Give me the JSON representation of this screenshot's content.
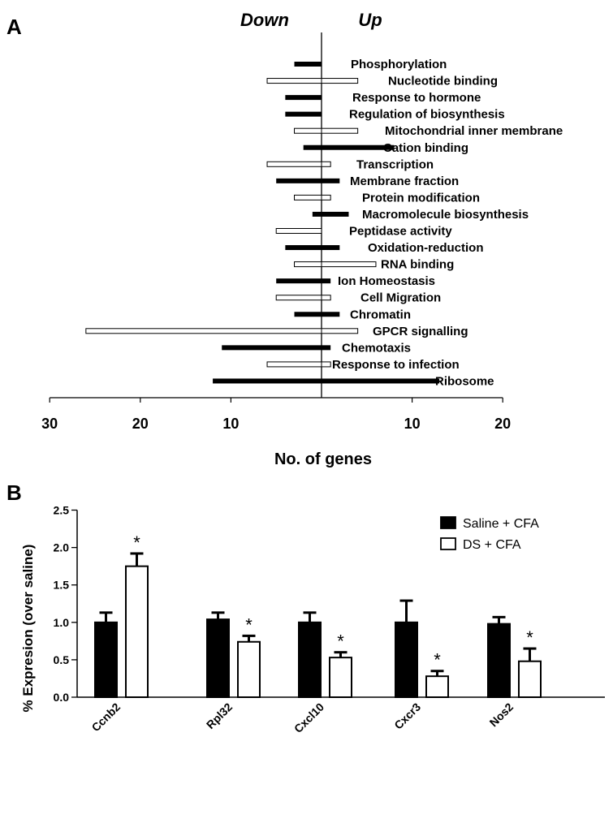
{
  "chart_data": [
    {
      "type": "bar",
      "orientation": "horizontal-diverging",
      "panel_label": "A",
      "direction_labels": {
        "down": "Down",
        "up": "Up"
      },
      "xlabel": "No. of genes",
      "down_axis": {
        "ticks": [
          30,
          20,
          10
        ],
        "range": [
          0,
          30
        ]
      },
      "up_axis": {
        "ticks": [
          10,
          20
        ],
        "range": [
          0,
          20
        ]
      },
      "legend": "none",
      "categories": [
        "Phosphorylation",
        "Nucleotide binding",
        "Response to hormone",
        "Regulation of biosynthesis",
        "Mitochondrial inner membrane",
        "Cation binding",
        "Transcription",
        "Membrane fraction",
        "Protein modification",
        "Macromolecule biosynthesis",
        "Peptidase activity",
        "Oxidation-reduction",
        "RNA binding",
        "Ion Homeostasis",
        "Cell Migration",
        "Chromatin",
        "GPCR signalling",
        "Chemotaxis",
        "Response to infection",
        "Ribosome"
      ],
      "series": [
        {
          "style": "filled",
          "colors": {
            "fill": "#000000"
          },
          "down": [
            3,
            0,
            4,
            4,
            0,
            2,
            0,
            5,
            0,
            1,
            0,
            4,
            0,
            5,
            0,
            3,
            0,
            11,
            0,
            12
          ],
          "up": [
            0,
            0,
            0,
            0,
            0,
            8,
            0,
            2,
            0,
            3,
            0,
            2,
            0,
            1,
            0,
            2,
            0,
            1,
            0,
            13
          ]
        },
        {
          "style": "open",
          "colors": {
            "fill": "#ffffff",
            "stroke": "#000000"
          },
          "down": [
            0,
            6,
            0,
            0,
            3,
            0,
            6,
            0,
            3,
            0,
            5,
            0,
            3,
            0,
            5,
            0,
            26,
            0,
            6,
            0
          ],
          "up": [
            0,
            4,
            0,
            0,
            4,
            0,
            1,
            0,
            1,
            0,
            0,
            0,
            6,
            0,
            1,
            0,
            4,
            0,
            1,
            0
          ]
        }
      ]
    },
    {
      "type": "bar",
      "panel_label": "B",
      "ylabel": "% Expresion  (over saline)",
      "ylim": [
        0,
        2.5
      ],
      "yticks": [
        "0.0",
        "0.5",
        "1.0",
        "1.5",
        "2.0",
        "2.5"
      ],
      "categories": [
        "Ccnb2",
        "Rpl32",
        "Cxcl10",
        "Cxcr3",
        "Nos2"
      ],
      "legend_position": "top-right",
      "series": [
        {
          "name": "Saline + CFA",
          "color": "#000000",
          "values": [
            1.0,
            1.04,
            1.0,
            1.0,
            0.98
          ],
          "errors": [
            0.13,
            0.09,
            0.13,
            0.29,
            0.09
          ]
        },
        {
          "name": "DS  + CFA",
          "color": "#ffffff",
          "values": [
            1.75,
            0.74,
            0.53,
            0.28,
            0.48
          ],
          "errors": [
            0.17,
            0.08,
            0.07,
            0.07,
            0.17
          ]
        }
      ],
      "significance_marker": "*",
      "significant": [
        [
          false,
          true
        ],
        [
          false,
          true
        ],
        [
          false,
          true
        ],
        [
          false,
          true
        ],
        [
          false,
          true
        ]
      ]
    }
  ]
}
